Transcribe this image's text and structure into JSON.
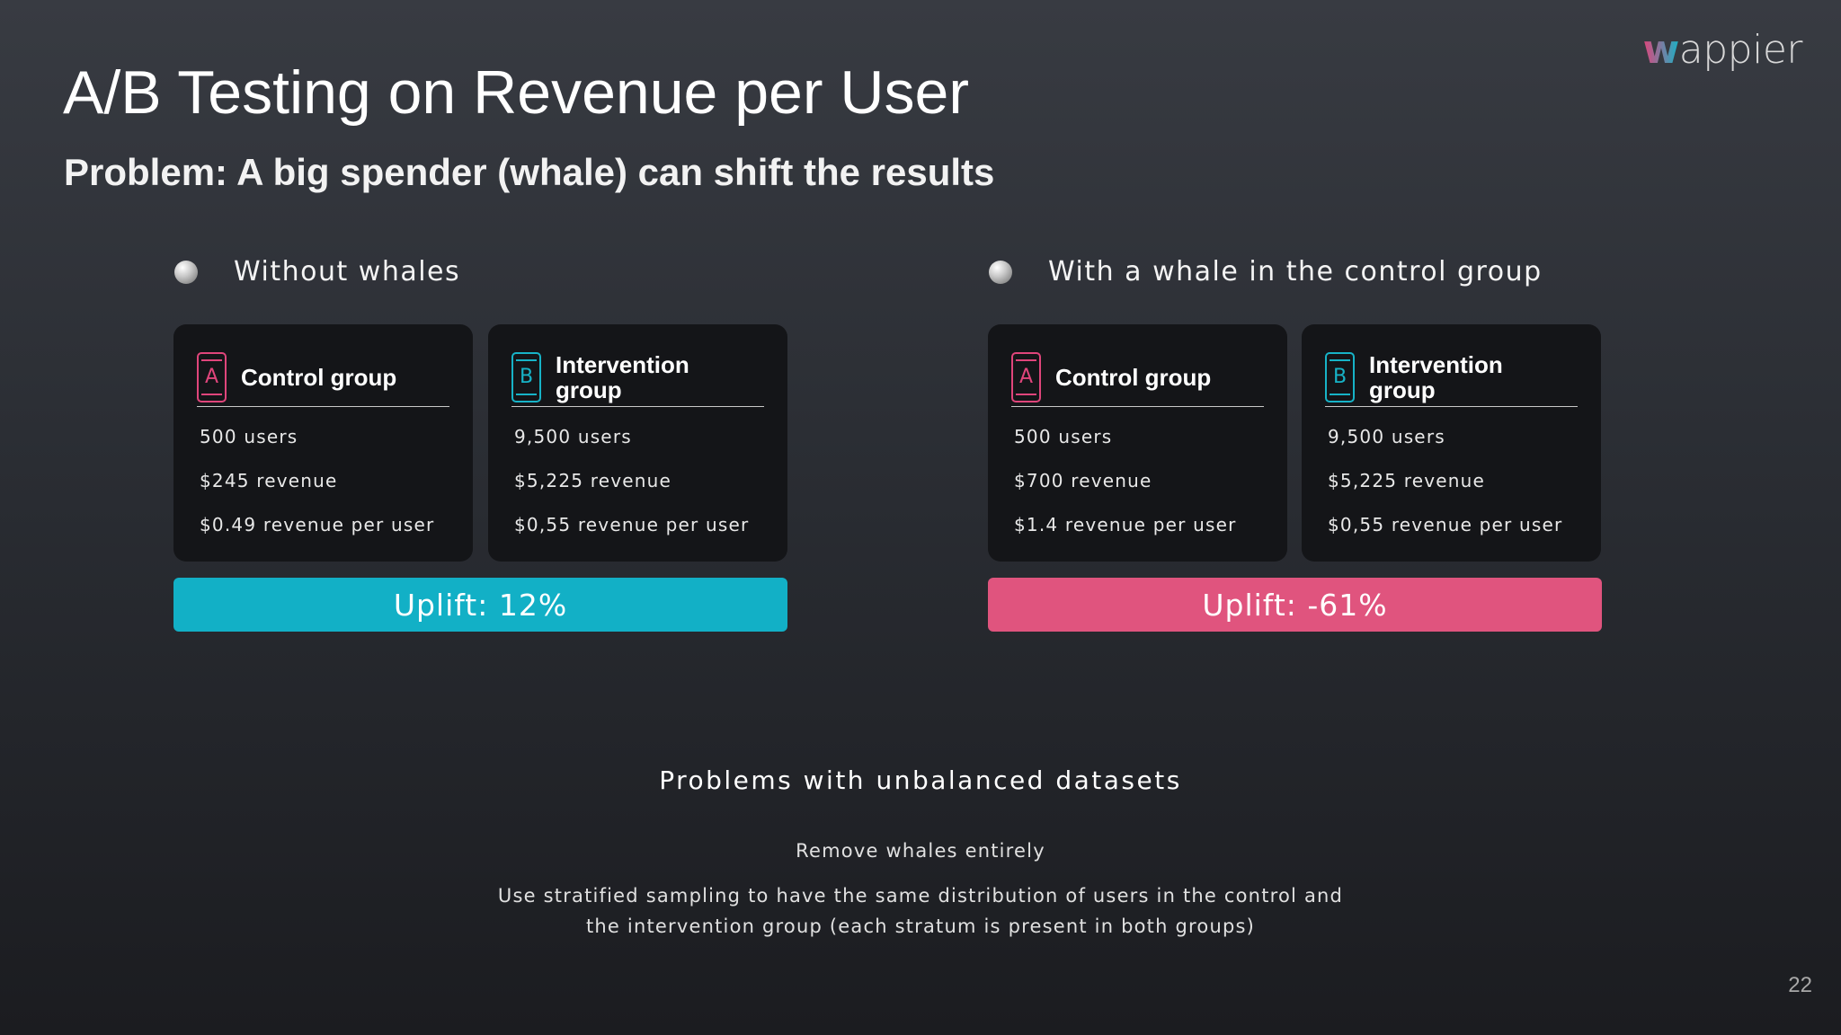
{
  "logo": {
    "w": "w",
    "rest": "appier"
  },
  "title": "A/B Testing on Revenue per User",
  "subtitle": "Problem: A big spender (whale) can shift the results",
  "scenarios": [
    {
      "heading": "Without whales",
      "cards": [
        {
          "badge": "A",
          "title": "Control group",
          "users": "500 users",
          "revenue": "$245 revenue",
          "rpu": "$0.49 revenue per user"
        },
        {
          "badge": "B",
          "title_line1": "Intervention",
          "title_line2": "group",
          "users": "9,500 users",
          "revenue": "$5,225 revenue",
          "rpu": "$0,55 revenue per user"
        }
      ],
      "uplift": "Uplift: 12%"
    },
    {
      "heading": "With a whale in the control group",
      "cards": [
        {
          "badge": "A",
          "title": "Control group",
          "users": "500 users",
          "revenue": "$700 revenue",
          "rpu": "$1.4 revenue per user"
        },
        {
          "badge": "B",
          "title_line1": "Intervention",
          "title_line2": "group",
          "users": "9,500 users",
          "revenue": "$5,225 revenue",
          "rpu": "$0,55 revenue per user"
        }
      ],
      "uplift": "Uplift: -61%"
    }
  ],
  "problems": {
    "title": "Problems with unbalanced datasets",
    "item1": "Remove whales entirely",
    "item2_line1": "Use stratified sampling to have the same distribution of users in the control and",
    "item2_line2": "the intervention group (each stratum is present in both groups)"
  },
  "page_number": "22",
  "colors": {
    "control": "#e0457b",
    "intervention": "#17b3c7",
    "uplift_positive": "#12b0c6",
    "uplift_negative": "#e0547e"
  }
}
